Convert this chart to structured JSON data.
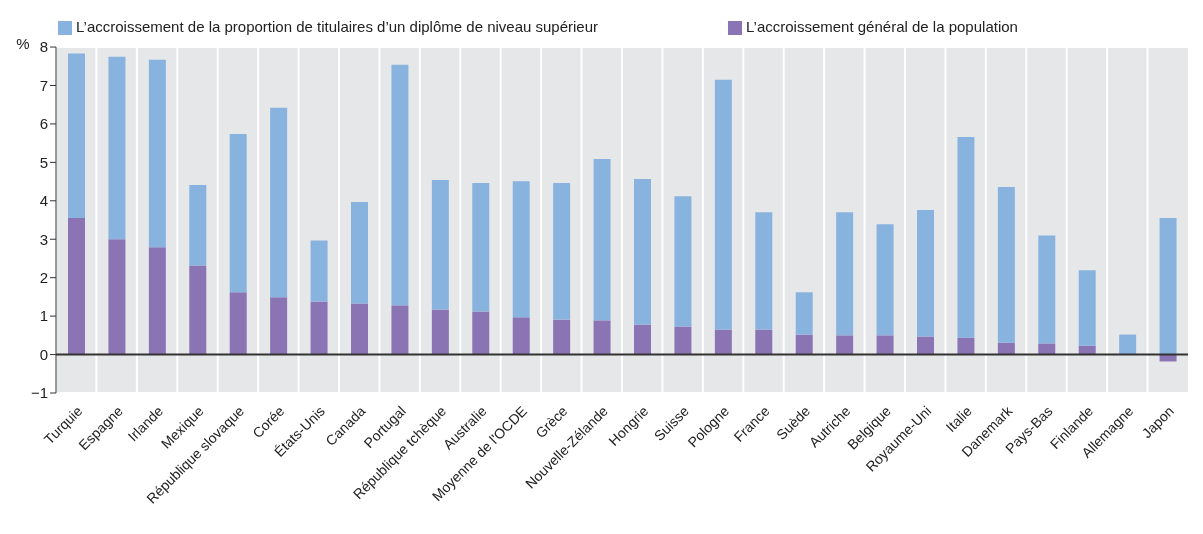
{
  "chart_data": {
    "type": "bar",
    "stacked": true,
    "ylabel": "%",
    "categories": [
      "Turquie",
      "Espagne",
      "Irlande",
      "Mexique",
      "République slovaque",
      "Corée",
      "États-Unis",
      "Canada",
      "Portugal",
      "République tchèque",
      "Australie",
      "Moyenne de l'OCDE",
      "Grèce",
      "Nouvelle-Zélande",
      "Hongrie",
      "Suisse",
      "Pologne",
      "France",
      "Suède",
      "Autriche",
      "Belgique",
      "Royaume-Uni",
      "Italie",
      "Danemark",
      "Pays-Bas",
      "Finlande",
      "Allemagne",
      "Japon"
    ],
    "series": [
      {
        "name": "L’accroissement général de la population",
        "color": "#8a74b4",
        "values": [
          3.55,
          3.0,
          2.79,
          2.32,
          1.62,
          1.49,
          1.38,
          1.33,
          1.28,
          1.17,
          1.12,
          0.97,
          0.91,
          0.89,
          0.78,
          0.73,
          0.65,
          0.65,
          0.52,
          0.5,
          0.5,
          0.47,
          0.44,
          0.31,
          0.29,
          0.23,
          0.0,
          -0.18
        ]
      },
      {
        "name": "L’accroissement de la proportion de titulaires d’un diplôme de niveau supérieur",
        "color": "#89b3df",
        "values": [
          4.28,
          4.75,
          4.88,
          2.09,
          4.12,
          4.93,
          1.59,
          2.64,
          6.26,
          3.37,
          3.34,
          3.54,
          3.55,
          4.2,
          3.79,
          3.39,
          6.5,
          3.05,
          1.1,
          3.2,
          2.89,
          3.29,
          5.22,
          4.05,
          2.81,
          1.96,
          0.52,
          3.55
        ]
      }
    ],
    "ylim": [
      -1,
      8
    ],
    "yticks": [
      -1,
      0,
      1,
      2,
      3,
      4,
      5,
      6,
      7,
      8
    ],
    "ref_lines": [
      {
        "axis": "y",
        "value": 0,
        "color": "#333333"
      }
    ],
    "grid": true,
    "legend": "top"
  }
}
